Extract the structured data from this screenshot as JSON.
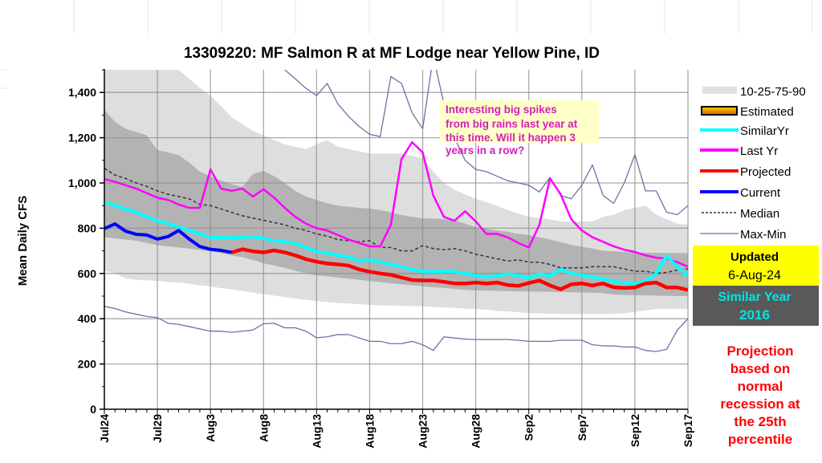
{
  "chart_data": {
    "type": "line",
    "title": "13309220: MF Salmon R at MF Lodge near Yellow Pine, ID",
    "ylabel": "Mean Daily CFS",
    "xlabel": "",
    "ylim": [
      0,
      1500
    ],
    "yticks": [
      "0",
      "200",
      "400",
      "600",
      "800",
      "1,000",
      "1,200",
      "1,400"
    ],
    "ytick_values": [
      0,
      200,
      400,
      600,
      800,
      1000,
      1200,
      1400
    ],
    "x_start": "Jul24",
    "x_end": "Sep17",
    "xticks": [
      "Jul24",
      "Jul29",
      "Aug3",
      "Aug8",
      "Aug13",
      "Aug18",
      "Aug23",
      "Aug28",
      "Sep2",
      "Sep7",
      "Sep12",
      "Sep17"
    ],
    "grid": true,
    "legend_placement": "right",
    "percentile_bands": {
      "name": "10-25-75-90",
      "p90": [
        1550,
        1550,
        1550,
        1550,
        1550,
        1550,
        1550,
        1500,
        1460,
        1420,
        1385,
        1340,
        1290,
        1260,
        1230,
        1210,
        1190,
        1170,
        1160,
        1150,
        1170,
        1190,
        1160,
        1150,
        1140,
        1130,
        1130,
        1130,
        1130,
        1120,
        1110,
        1050,
        1000,
        970,
        950,
        930,
        915,
        900,
        880,
        865,
        850,
        845,
        840,
        830,
        828,
        830,
        830,
        850,
        860,
        880,
        890,
        900,
        860,
        840,
        820,
        815
      ],
      "p75": [
        1323,
        1270,
        1240,
        1225,
        1210,
        1145,
        1135,
        1123,
        1090,
        1050,
        1028,
        1010,
        995,
        982,
        1040,
        1053,
        1030,
        1000,
        965,
        940,
        925,
        910,
        900,
        895,
        890,
        887,
        880,
        870,
        858,
        850,
        844,
        842,
        840,
        835,
        820,
        805,
        798,
        790,
        785,
        775,
        770,
        760,
        750,
        738,
        727,
        718,
        710,
        700,
        698,
        695,
        693,
        692,
        691,
        691,
        690,
        690
      ],
      "p25": [
        760,
        755,
        750,
        745,
        735,
        725,
        720,
        715,
        710,
        703,
        698,
        690,
        680,
        672,
        660,
        645,
        635,
        625,
        612,
        600,
        592,
        587,
        582,
        577,
        572,
        567,
        562,
        557,
        552,
        548,
        543,
        540,
        536,
        532,
        528,
        525,
        524,
        523,
        522,
        521,
        520,
        520,
        519,
        518,
        517,
        516,
        515,
        513,
        507,
        505,
        504,
        503,
        502,
        501,
        500,
        500
      ],
      "p10": [
        613,
        600,
        578,
        572,
        570,
        567,
        562,
        560,
        555,
        548,
        543,
        535,
        530,
        522,
        515,
        508,
        502,
        495,
        490,
        484,
        478,
        474,
        470,
        467,
        464,
        461,
        459,
        458,
        457,
        456,
        455,
        452,
        450,
        448,
        445,
        443,
        440,
        435,
        432,
        428,
        425,
        424,
        422,
        421,
        420,
        420,
        420,
        420,
        421,
        424,
        430,
        437,
        443,
        443,
        443,
        443
      ]
    },
    "series": [
      {
        "name": "Estimated",
        "color": "#f0a000",
        "values": []
      },
      {
        "name": "SimilarYr",
        "color": "#00ffff",
        "start_day": 0,
        "values": [
          918,
          900,
          885,
          870,
          850,
          833,
          820,
          805,
          790,
          775,
          760,
          758,
          757,
          760,
          762,
          755,
          745,
          740,
          733,
          715,
          697,
          690,
          680,
          673,
          656,
          660,
          650,
          640,
          630,
          618,
          608,
          608,
          608,
          608,
          600,
          590,
          585,
          590,
          597,
          590,
          580,
          597,
          590,
          618,
          600,
          592,
          585,
          575,
          565,
          558,
          556,
          567,
          600,
          678,
          628,
          590
        ]
      },
      {
        "name": "Last Yr",
        "color": "#ff00ff",
        "start_day": 0,
        "values": [
          1017,
          1005,
          990,
          975,
          955,
          935,
          925,
          905,
          890,
          890,
          1060,
          975,
          965,
          975,
          940,
          972,
          935,
          890,
          850,
          820,
          800,
          790,
          770,
          750,
          735,
          720,
          720,
          815,
          1105,
          1180,
          1135,
          945,
          850,
          833,
          875,
          830,
          775,
          775,
          760,
          735,
          715,
          815,
          1020,
          950,
          840,
          790,
          760,
          740,
          720,
          705,
          695,
          680,
          670,
          665,
          650,
          630
        ]
      },
      {
        "name": "Projected",
        "color": "#ff0000",
        "start_day": 12,
        "values": [
          693,
          707,
          698,
          693,
          702,
          693,
          680,
          663,
          652,
          644,
          640,
          635,
          618,
          608,
          600,
          594,
          582,
          571,
          569,
          569,
          563,
          556,
          556,
          560,
          556,
          560,
          549,
          545,
          558,
          569,
          547,
          530,
          552,
          556,
          547,
          556,
          539,
          536,
          538,
          556,
          560,
          538,
          538,
          527
        ]
      },
      {
        "name": "Current",
        "color": "#0000ff",
        "start_day": 0,
        "values": [
          798,
          819,
          787,
          773,
          770,
          752,
          763,
          790,
          752,
          719,
          707,
          702,
          693
        ]
      },
      {
        "name": "Median",
        "color": "#333333",
        "start_day": 0,
        "values": [
          1065,
          1035,
          1020,
          1000,
          985,
          965,
          950,
          940,
          930,
          905,
          900,
          885,
          870,
          855,
          845,
          835,
          825,
          815,
          800,
          790,
          775,
          765,
          750,
          745,
          740,
          745,
          715,
          715,
          700,
          700,
          723,
          710,
          705,
          710,
          700,
          685,
          675,
          665,
          655,
          660,
          650,
          650,
          640,
          625,
          625,
          625,
          630,
          630,
          630,
          620,
          610,
          610,
          600,
          605,
          615,
          620
        ]
      },
      {
        "name": "Max",
        "color": "#7070a8",
        "start_day": 17,
        "values": [
          1500,
          1460,
          1418,
          1386,
          1440,
          1350,
          1295,
          1250,
          1215,
          1205,
          1470,
          1440,
          1310,
          1240,
          1560,
          1350,
          1200,
          1100,
          1060,
          1050,
          1030,
          1010,
          1000,
          990,
          960,
          1025,
          945,
          930,
          990,
          1080,
          945,
          910,
          1000,
          1125,
          965,
          965,
          870,
          860,
          900
        ]
      },
      {
        "name": "Min",
        "color": "#7070a8",
        "start_day": 0,
        "values": [
          455,
          445,
          430,
          420,
          410,
          405,
          380,
          375,
          365,
          355,
          345,
          345,
          340,
          345,
          350,
          378,
          380,
          360,
          360,
          345,
          316,
          320,
          330,
          330,
          315,
          300,
          300,
          290,
          290,
          300,
          285,
          260,
          320,
          315,
          310,
          308,
          308,
          308,
          308,
          305,
          300,
          300,
          300,
          305,
          305,
          305,
          285,
          280,
          280,
          275,
          275,
          260,
          255,
          265,
          350,
          400
        ]
      }
    ],
    "annotation": [
      "Interesting big spikes",
      "from big rains last year at",
      "this time. Will it happen 3",
      "years in a row?"
    ]
  },
  "legend": {
    "items": [
      {
        "label": "10-25-75-90",
        "swatch": "band",
        "color": "#e0e0e0"
      },
      {
        "label": "Estimated",
        "swatch": "estimated",
        "color": "#f0a000"
      },
      {
        "label": "SimilarYr",
        "swatch": "line",
        "color": "#00ffff"
      },
      {
        "label": "Last Yr",
        "swatch": "line",
        "color": "#ff00ff"
      },
      {
        "label": "Projected",
        "swatch": "line",
        "color": "#ff0000"
      },
      {
        "label": "Current",
        "swatch": "line",
        "color": "#0000ff"
      },
      {
        "label": "Median",
        "swatch": "dashed",
        "color": "#333333"
      },
      {
        "label": "Max-Min",
        "swatch": "thin",
        "color": "#7070a8"
      }
    ]
  },
  "updated": {
    "label": "Updated",
    "date": "6-Aug-24",
    "color": "#ffff00"
  },
  "similar_year": {
    "label": "Similar Year",
    "year": "2016",
    "color": "#00e5e5"
  },
  "projection_note": [
    "Projection",
    "based on",
    "normal",
    "recession at",
    "the 25th",
    "percentile"
  ]
}
